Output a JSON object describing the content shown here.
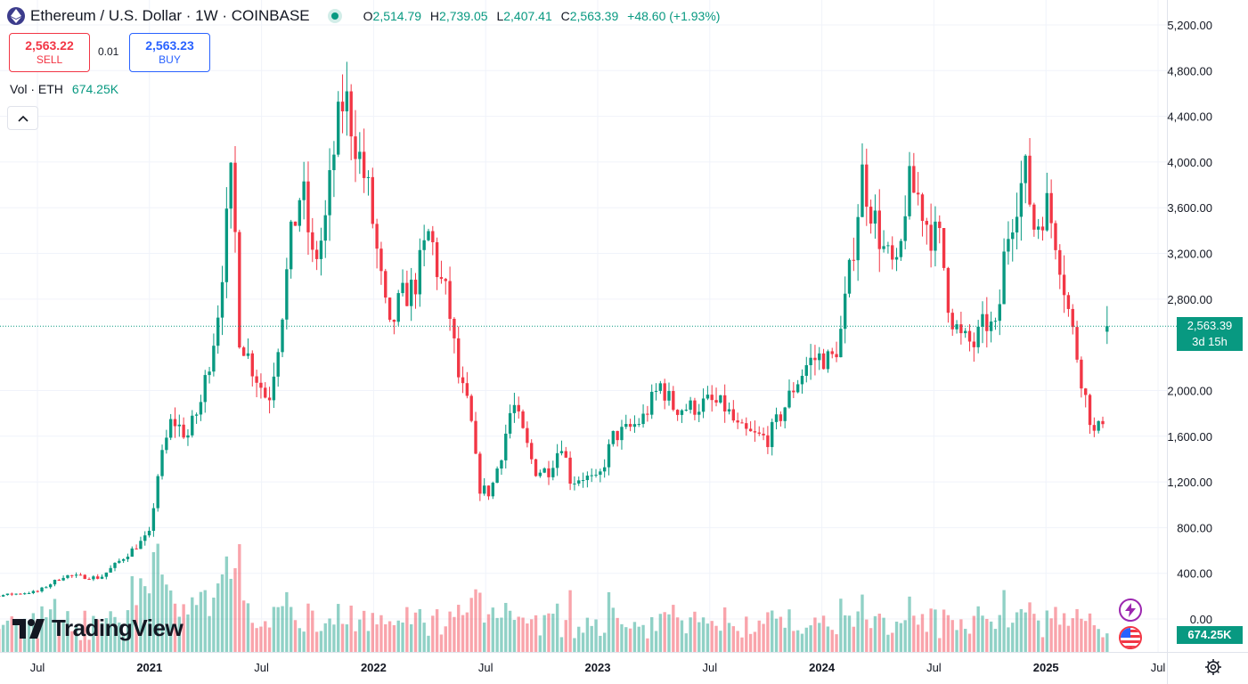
{
  "header": {
    "title": "Ethereum / U.S. Dollar · 1W · COINBASE",
    "open_label": "O",
    "open": "2,514.79",
    "high_label": "H",
    "high": "2,739.05",
    "low_label": "L",
    "low": "2,407.41",
    "close_label": "C",
    "close": "2,563.39",
    "change": "+48.60 (+1.93%)",
    "logo_icon": "ethereum-icon",
    "status_icon": "market-open-dot-icon"
  },
  "trade": {
    "sell_price": "2,563.22",
    "sell_label": "SELL",
    "spread": "0.01",
    "buy_price": "2,563.23",
    "buy_label": "BUY"
  },
  "volume_legend": {
    "label": "Vol · ETH",
    "value": "674.25K"
  },
  "last_price": {
    "price": "2,563.39",
    "countdown": "3d 15h"
  },
  "volume_tag": "674.25K",
  "brand": "TradingView",
  "colors": {
    "up": "#089981",
    "down": "#f23645",
    "grid": "#f0f3fa",
    "text": "#131722"
  },
  "chart_data": {
    "type": "candlestick",
    "interval": "1W",
    "y_ticks": [
      "5,200.00",
      "4,800.00",
      "4,400.00",
      "4,000.00",
      "3,600.00",
      "3,200.00",
      "2,800.00",
      "2,000.00",
      "1,600.00",
      "1,200.00",
      "800.00",
      "400.00",
      "0.00"
    ],
    "ylim": [
      0,
      5350
    ],
    "x_ticks": [
      {
        "label": "Jul",
        "t": 2020.5
      },
      {
        "label": "2021",
        "t": 2021.0,
        "bold": true
      },
      {
        "label": "Jul",
        "t": 2021.5
      },
      {
        "label": "2022",
        "t": 2022.0,
        "bold": true
      },
      {
        "label": "Jul",
        "t": 2022.5
      },
      {
        "label": "2023",
        "t": 2023.0,
        "bold": true
      },
      {
        "label": "Jul",
        "t": 2023.5
      },
      {
        "label": "2024",
        "t": 2024.0,
        "bold": true
      },
      {
        "label": "Jul",
        "t": 2024.5
      },
      {
        "label": "2025",
        "t": 2025.0,
        "bold": true
      },
      {
        "label": "Jul",
        "t": 2025.5
      }
    ],
    "x_range": [
      "2020-02",
      "2025-06"
    ],
    "close_anchors": [
      [
        2020.0,
        180
      ],
      [
        2020.3,
        200
      ],
      [
        2020.5,
        240
      ],
      [
        2020.62,
        380
      ],
      [
        2020.78,
        360
      ],
      [
        2020.92,
        600
      ],
      [
        2021.0,
        740
      ],
      [
        2021.04,
        1300
      ],
      [
        2021.1,
        1750
      ],
      [
        2021.17,
        1600
      ],
      [
        2021.23,
        1900
      ],
      [
        2021.3,
        2600
      ],
      [
        2021.37,
        3950
      ],
      [
        2021.4,
        2500
      ],
      [
        2021.46,
        2200
      ],
      [
        2021.53,
        1900
      ],
      [
        2021.58,
        2500
      ],
      [
        2021.63,
        3300
      ],
      [
        2021.68,
        3800
      ],
      [
        2021.73,
        3100
      ],
      [
        2021.78,
        3400
      ],
      [
        2021.83,
        4200
      ],
      [
        2021.87,
        4600
      ],
      [
        2021.93,
        4100
      ],
      [
        2021.98,
        3700
      ],
      [
        2022.03,
        3000
      ],
      [
        2022.07,
        2500
      ],
      [
        2022.12,
        2800
      ],
      [
        2022.18,
        2900
      ],
      [
        2022.25,
        3400
      ],
      [
        2022.29,
        3000
      ],
      [
        2022.33,
        2800
      ],
      [
        2022.38,
        2100
      ],
      [
        2022.43,
        1800
      ],
      [
        2022.47,
        1150
      ],
      [
        2022.52,
        1100
      ],
      [
        2022.57,
        1450
      ],
      [
        2022.62,
        1900
      ],
      [
        2022.67,
        1600
      ],
      [
        2022.72,
        1300
      ],
      [
        2022.78,
        1300
      ],
      [
        2022.84,
        1550
      ],
      [
        2022.88,
        1200
      ],
      [
        2022.93,
        1250
      ],
      [
        2023.0,
        1200
      ],
      [
        2023.07,
        1600
      ],
      [
        2023.13,
        1650
      ],
      [
        2023.2,
        1750
      ],
      [
        2023.28,
        2050
      ],
      [
        2023.34,
        1850
      ],
      [
        2023.42,
        1850
      ],
      [
        2023.5,
        1900
      ],
      [
        2023.57,
        1850
      ],
      [
        2023.63,
        1650
      ],
      [
        2023.7,
        1600
      ],
      [
        2023.76,
        1580
      ],
      [
        2023.82,
        1800
      ],
      [
        2023.88,
        2050
      ],
      [
        2023.94,
        2250
      ],
      [
        2024.0,
        2300
      ],
      [
        2024.04,
        2250
      ],
      [
        2024.08,
        2450
      ],
      [
        2024.13,
        3100
      ],
      [
        2024.18,
        3900
      ],
      [
        2024.22,
        3600
      ],
      [
        2024.28,
        3200
      ],
      [
        2024.34,
        3000
      ],
      [
        2024.38,
        3800
      ],
      [
        2024.43,
        3700
      ],
      [
        2024.48,
        3400
      ],
      [
        2024.53,
        3300
      ],
      [
        2024.57,
        2700
      ],
      [
        2024.62,
        2450
      ],
      [
        2024.68,
        2400
      ],
      [
        2024.73,
        2600
      ],
      [
        2024.78,
        2500
      ],
      [
        2024.82,
        3300
      ],
      [
        2024.87,
        3700
      ],
      [
        2024.91,
        3900
      ],
      [
        2024.95,
        3400
      ],
      [
        2025.0,
        3650
      ],
      [
        2025.05,
        3300
      ],
      [
        2025.1,
        2700
      ],
      [
        2025.14,
        2300
      ],
      [
        2025.18,
        1900
      ],
      [
        2025.22,
        1580
      ],
      [
        2025.26,
        1800
      ],
      [
        2025.28,
        2550
      ],
      [
        2025.29,
        2563
      ]
    ],
    "volume_axis_zero": "0.00",
    "volume_last": "674.25K"
  }
}
